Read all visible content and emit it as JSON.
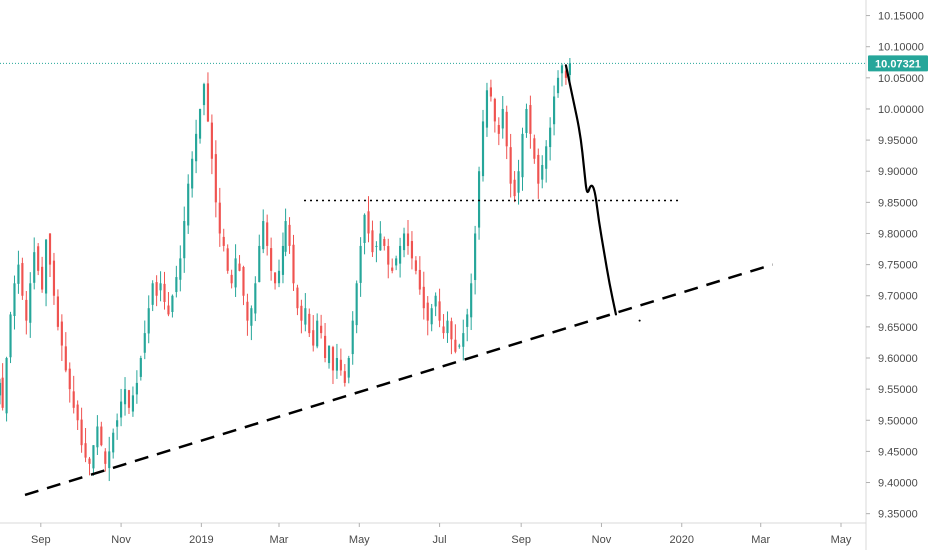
{
  "chart_data": {
    "type": "candlestick",
    "x_tick_labels": [
      "Sep",
      "Nov",
      "2019",
      "Mar",
      "May",
      "Jul",
      "Sep",
      "Nov",
      "2020",
      "Mar",
      "May"
    ],
    "x_tick_dates": [
      "2018-09-01",
      "2018-11-01",
      "2019-01-01",
      "2019-03-01",
      "2019-05-01",
      "2019-07-01",
      "2019-09-01",
      "2019-11-01",
      "2020-01-01",
      "2020-03-01",
      "2020-05-01"
    ],
    "y_tick_labels": [
      "9.35000",
      "9.40000",
      "9.45000",
      "9.50000",
      "9.55000",
      "9.60000",
      "9.65000",
      "9.70000",
      "9.75000",
      "9.80000",
      "9.85000",
      "9.90000",
      "9.95000",
      "10.00000",
      "10.05000",
      "10.10000",
      "10.15000"
    ],
    "ylim": [
      9.335,
      10.175
    ],
    "xlim": [
      "2018-08-01",
      "2020-05-20"
    ],
    "grid": false,
    "colors": {
      "up": "#26a69a",
      "down": "#ef5350",
      "drawing": "#000000",
      "price_line": "#26a69a"
    },
    "current_price": {
      "label": "10.07321",
      "value": 10.07321
    },
    "price_path_close": [
      9.56,
      9.52,
      9.6,
      9.67,
      9.72,
      9.75,
      9.7,
      9.66,
      9.72,
      9.77,
      9.74,
      9.71,
      9.79,
      9.75,
      9.7,
      9.65,
      9.62,
      9.58,
      9.55,
      9.52,
      9.5,
      9.46,
      9.44,
      9.43,
      9.46,
      9.49,
      9.46,
      9.43,
      9.45,
      9.48,
      9.5,
      9.53,
      9.55,
      9.52,
      9.54,
      9.56,
      9.6,
      9.64,
      9.68,
      9.72,
      9.7,
      9.72,
      9.69,
      9.67,
      9.7,
      9.73,
      9.76,
      9.82,
      9.88,
      9.92,
      9.96,
      10.0,
      10.04,
      9.98,
      9.92,
      9.85,
      9.8,
      9.78,
      9.74,
      9.72,
      9.76,
      9.74,
      9.7,
      9.66,
      9.68,
      9.72,
      9.78,
      9.82,
      9.78,
      9.74,
      9.72,
      9.74,
      9.78,
      9.82,
      9.78,
      9.72,
      9.68,
      9.66,
      9.68,
      9.64,
      9.62,
      9.66,
      9.64,
      9.6,
      9.62,
      9.58,
      9.6,
      9.58,
      9.56,
      9.6,
      9.66,
      9.72,
      9.78,
      9.83,
      9.8,
      9.77,
      9.78,
      9.8,
      9.78,
      9.75,
      9.74,
      9.76,
      9.78,
      9.8,
      9.78,
      9.76,
      9.74,
      9.71,
      9.68,
      9.66,
      9.68,
      9.7,
      9.66,
      9.64,
      9.66,
      9.63,
      9.61,
      9.62,
      9.64,
      9.67,
      9.72,
      9.8,
      9.9,
      9.98,
      10.03,
      10.02,
      9.98,
      9.96,
      10.0,
      9.94,
      9.88,
      9.86,
      9.9,
      9.96,
      10.0,
      9.96,
      9.92,
      9.88,
      9.91,
      9.94,
      9.97,
      10.02,
      10.05,
      10.07,
      10.05,
      10.07321
    ],
    "drawings": {
      "support_trendline": [
        [
          "2018-08-20",
          9.38
        ],
        [
          "2020-03-10",
          9.75
        ]
      ],
      "resistance_level": {
        "value": 9.853,
        "from": "2019-03-20",
        "to": "2020-01-01"
      },
      "projection_path": [
        [
          "2019-10-05",
          10.07
        ],
        [
          "2019-10-10",
          10.02
        ],
        [
          "2019-10-16",
          9.96
        ],
        [
          "2019-10-19",
          9.9
        ],
        [
          "2019-10-21",
          9.86
        ],
        [
          "2019-10-24",
          9.88
        ],
        [
          "2019-10-27",
          9.87
        ],
        [
          "2019-10-30",
          9.82
        ],
        [
          "2019-11-03",
          9.77
        ],
        [
          "2019-11-07",
          9.72
        ],
        [
          "2019-11-12",
          9.67
        ]
      ],
      "dot": [
        "2019-11-30",
        9.66
      ]
    }
  }
}
